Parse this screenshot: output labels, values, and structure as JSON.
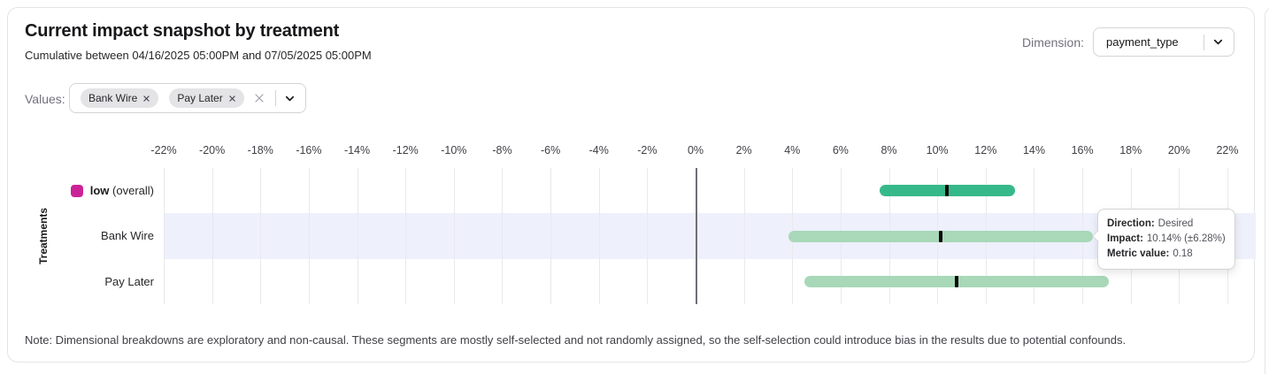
{
  "card": {
    "title": "Current impact snapshot by treatment",
    "subtitle": "Cumulative between 04/16/2025 05:00PM and 07/05/2025 05:00PM",
    "dimension": {
      "label": "Dimension:",
      "value": "payment_type"
    },
    "values_filter": {
      "label": "Values:",
      "chips": [
        {
          "label": "Bank Wire"
        },
        {
          "label": "Pay Later"
        }
      ]
    },
    "note": "Note: Dimensional breakdowns are exploratory and non-causal. These segments are mostly self-selected and not randomly assigned, so the self-selection could introduce bias in the results due to potential confounds."
  },
  "tooltip": {
    "lines": [
      {
        "label": "Direction:",
        "value": "Desired"
      },
      {
        "label": "Impact:",
        "value": "10.14% (±6.28%)"
      },
      {
        "label": "Metric value:",
        "value": "0.18"
      }
    ]
  },
  "chart_data": {
    "type": "bar",
    "orientation": "horizontal",
    "variant": "confidence-interval",
    "ylabel": "Treatments",
    "xlim": [
      -22,
      22
    ],
    "grid": true,
    "x_tick_labels": [
      "-22%",
      "-20%",
      "-18%",
      "-16%",
      "-14%",
      "-12%",
      "-10%",
      "-8%",
      "-6%",
      "-4%",
      "-2%",
      "0%",
      "2%",
      "4%",
      "6%",
      "8%",
      "10%",
      "12%",
      "14%",
      "16%",
      "18%",
      "20%",
      "22%"
    ],
    "rows": [
      {
        "label_parts": [
          {
            "text": "low",
            "bold": true
          },
          {
            "text": " (overall)",
            "bold": false
          }
        ],
        "swatch_color": "#cb2397",
        "bar_color": "#36b98a",
        "impact_pct": 10.4,
        "ci_low_pct": 7.6,
        "ci_high_pct": 13.2,
        "highlighted": false
      },
      {
        "label_parts": [
          {
            "text": "Bank Wire",
            "bold": false
          }
        ],
        "bar_color": "#a8d8b8",
        "impact_pct": 10.14,
        "ci_low_pct": 3.86,
        "ci_high_pct": 16.42,
        "highlighted": true
      },
      {
        "label_parts": [
          {
            "text": "Pay Later",
            "bold": false
          }
        ],
        "bar_color": "#a8d8b8",
        "impact_pct": 10.8,
        "ci_low_pct": 4.5,
        "ci_high_pct": 17.1,
        "highlighted": false
      }
    ],
    "marker_color": "#0a0a0a",
    "highlight_color": "#eef0fb",
    "legend_position": "left"
  }
}
